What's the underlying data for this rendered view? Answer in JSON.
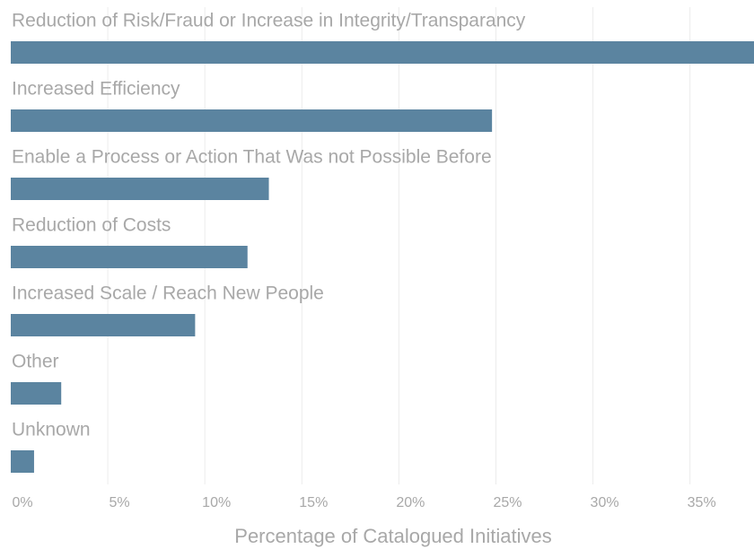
{
  "chart_data": {
    "type": "barh",
    "categories": [
      "Reduction of Risk/Fraud or Increase in Integrity/Transparancy",
      "Increased Efficiency",
      "Enable a Process or Action That Was not Possible Before",
      "Reduction of Costs",
      "Increased Scale / Reach New People",
      "Other",
      "Unknown"
    ],
    "values": [
      38.3,
      24.8,
      13.3,
      12.2,
      9.5,
      2.6,
      1.2
    ],
    "color": "#5b84a0",
    "xlabel": "Percentage of Catalogued Initiatives",
    "xlim": [
      0,
      38.3
    ],
    "xticks": [
      {
        "value": 0,
        "label": "0%"
      },
      {
        "value": 5,
        "label": "5%"
      },
      {
        "value": 10,
        "label": "10%"
      },
      {
        "value": 15,
        "label": "15%"
      },
      {
        "value": 20,
        "label": "20%"
      },
      {
        "value": 25,
        "label": "25%"
      },
      {
        "value": 30,
        "label": "30%"
      },
      {
        "value": 35,
        "label": "35%"
      }
    ],
    "grid": true
  }
}
